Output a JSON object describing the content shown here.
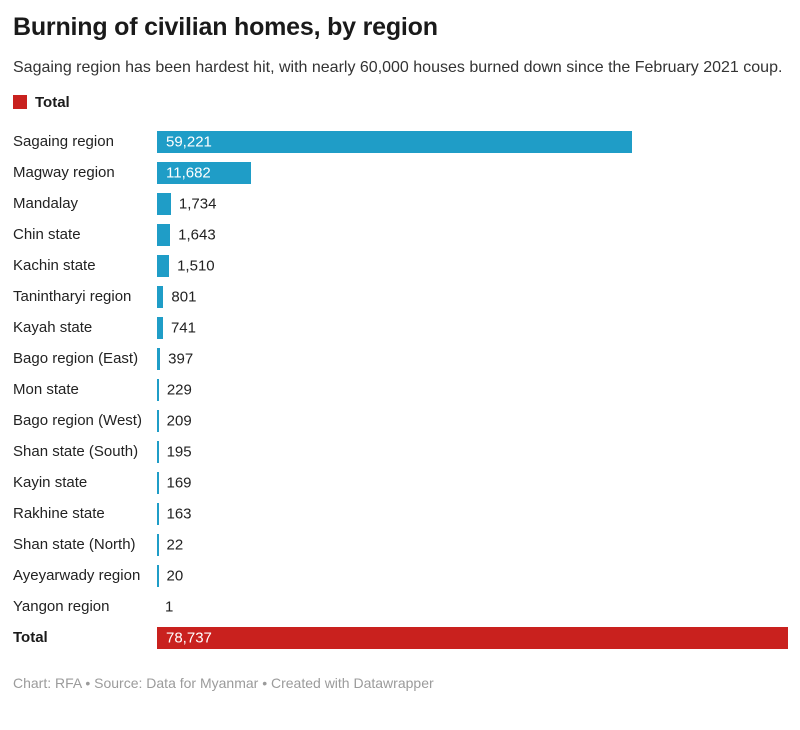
{
  "header": {
    "title": "Burning of civilian homes, by region",
    "subtitle": "Sagaing region has been hardest hit, with nearly 60,000 houses burned down since the February 2021 coup."
  },
  "legend": {
    "label": "Total",
    "color": "#c9211e"
  },
  "chart_data": {
    "type": "bar",
    "orientation": "horizontal",
    "title": "Burning of civilian homes, by region",
    "categories": [
      "Sagaing region",
      "Magway region",
      "Mandalay",
      "Chin state",
      "Kachin state",
      "Tanintharyi region",
      "Kayah state",
      "Bago region (East)",
      "Mon state",
      "Bago region (West)",
      "Shan state (South)",
      "Kayin state",
      "Rakhine state",
      "Shan state (North)",
      "Ayeyarwady region",
      "Yangon region",
      "Total"
    ],
    "values": [
      59221,
      11682,
      1734,
      1643,
      1510,
      801,
      741,
      397,
      229,
      209,
      195,
      169,
      163,
      22,
      20,
      1,
      78737
    ],
    "value_labels": [
      "59,221",
      "11,682",
      "1,734",
      "1,643",
      "1,510",
      "801",
      "741",
      "397",
      "229",
      "209",
      "195",
      "169",
      "163",
      "22",
      "20",
      "1",
      "78,737"
    ],
    "total_row_index": 16,
    "xlim": [
      0,
      78737
    ],
    "bar_color": "#1f9dc7",
    "total_color": "#c9211e",
    "grid": false,
    "legend_position": "top-left"
  },
  "footer": {
    "credit": "Chart: RFA • Source: Data for Myanmar • Created with Datawrapper"
  }
}
